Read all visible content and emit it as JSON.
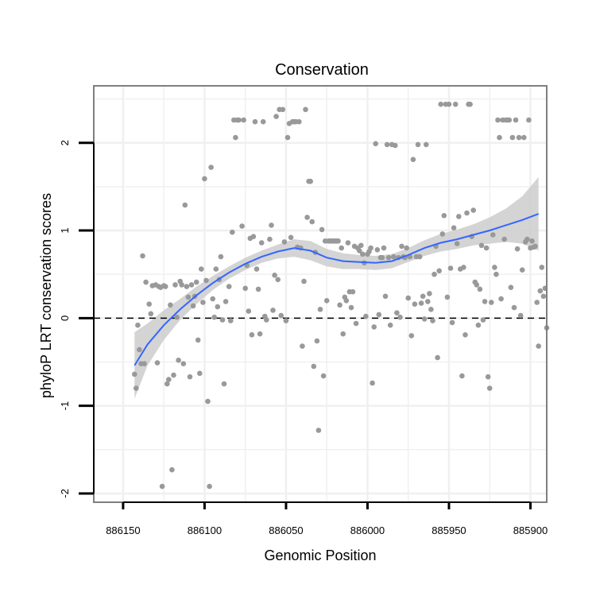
{
  "chart_data": {
    "type": "scatter",
    "title": "Conservation",
    "xlabel": "Genomic Position",
    "ylabel": "phyloP LRT conservation scores",
    "x_reversed": true,
    "xlim": [
      886168,
      885890
    ],
    "ylim": [
      -2.1,
      2.65
    ],
    "x_ticks": [
      886150,
      886100,
      886050,
      886000,
      885950,
      885900
    ],
    "x_tick_labels": [
      "886150",
      "886100",
      "886050",
      "886000",
      "885950",
      "885900"
    ],
    "y_ticks": [
      -2,
      -1,
      0,
      1,
      2
    ],
    "y_tick_labels": [
      "-2",
      "-1",
      "0",
      "1",
      "2"
    ],
    "reference_line_y": 0,
    "grid": true,
    "colors": {
      "points": "#999999",
      "smooth_line": "#3366ff",
      "confidence_band": "#cccccc",
      "panel_border": "#7f7f7f",
      "grid": "#f0f0f0"
    },
    "smooth": {
      "x": [
        886143,
        886135,
        886125,
        886115,
        886105,
        886095,
        886085,
        886075,
        886065,
        886055,
        886045,
        886035,
        886025,
        886015,
        886005,
        885995,
        885985,
        885975,
        885965,
        885955,
        885945,
        885935,
        885925,
        885915,
        885905,
        885895
      ],
      "y": [
        -0.54,
        -0.3,
        -0.08,
        0.1,
        0.26,
        0.4,
        0.52,
        0.62,
        0.7,
        0.76,
        0.8,
        0.77,
        0.69,
        0.65,
        0.64,
        0.63,
        0.65,
        0.72,
        0.8,
        0.86,
        0.9,
        0.95,
        1.0,
        1.06,
        1.12,
        1.19
      ],
      "lower": [
        -0.92,
        -0.54,
        -0.25,
        -0.02,
        0.16,
        0.32,
        0.45,
        0.55,
        0.63,
        0.68,
        0.7,
        0.66,
        0.59,
        0.56,
        0.56,
        0.55,
        0.57,
        0.64,
        0.71,
        0.76,
        0.79,
        0.83,
        0.85,
        0.87,
        0.85,
        0.77
      ],
      "upper": [
        -0.16,
        -0.06,
        0.09,
        0.22,
        0.36,
        0.48,
        0.59,
        0.69,
        0.77,
        0.84,
        0.9,
        0.88,
        0.79,
        0.74,
        0.72,
        0.71,
        0.73,
        0.8,
        0.89,
        0.96,
        1.01,
        1.07,
        1.15,
        1.25,
        1.39,
        1.61
      ]
    },
    "points": [
      [
        886143,
        -0.64
      ],
      [
        886142,
        -0.8
      ],
      [
        886141,
        -0.08
      ],
      [
        886140,
        -0.36
      ],
      [
        886139,
        -0.52
      ],
      [
        886138,
        0.71
      ],
      [
        886137,
        -0.52
      ],
      [
        886136,
        0.41
      ],
      [
        886134,
        0.16
      ],
      [
        886133,
        0.05
      ],
      [
        886132,
        0.37
      ],
      [
        886130,
        0.38
      ],
      [
        886129,
        -0.51
      ],
      [
        886128,
        0.36
      ],
      [
        886127,
        0.35
      ],
      [
        886126,
        -1.92
      ],
      [
        886125,
        0.37
      ],
      [
        886124,
        0.36
      ],
      [
        886123,
        -0.75
      ],
      [
        886122,
        -0.7
      ],
      [
        886121,
        0.15
      ],
      [
        886120,
        -1.73
      ],
      [
        886119,
        -0.65
      ],
      [
        886118,
        0.38
      ],
      [
        886117,
        0.01
      ],
      [
        886116,
        -0.48
      ],
      [
        886115,
        0.42
      ],
      [
        886114,
        0.38
      ],
      [
        886113,
        -0.52
      ],
      [
        886112,
        1.29
      ],
      [
        886111,
        0.36
      ],
      [
        886110,
        0.24
      ],
      [
        886109,
        -0.67
      ],
      [
        886108,
        0.38
      ],
      [
        886107,
        0.14
      ],
      [
        886106,
        0.25
      ],
      [
        886105,
        0.41
      ],
      [
        886104,
        -0.25
      ],
      [
        886103,
        -0.63
      ],
      [
        886102,
        0.56
      ],
      [
        886101,
        0.18
      ],
      [
        886100,
        1.59
      ],
      [
        886099,
        0.43
      ],
      [
        886098,
        -0.95
      ],
      [
        886097,
        -1.92
      ],
      [
        886096,
        1.72
      ],
      [
        886095,
        0.22
      ],
      [
        886094,
        0.01
      ],
      [
        886093,
        0.56
      ],
      [
        886092,
        0.13
      ],
      [
        886091,
        0.44
      ],
      [
        886090,
        0.7
      ],
      [
        886089,
        -0.02
      ],
      [
        886088,
        -0.75
      ],
      [
        886087,
        0.19
      ],
      [
        886085,
        0.36
      ],
      [
        886084,
        -0.03
      ],
      [
        886083,
        0.98
      ],
      [
        886082,
        2.26
      ],
      [
        886081,
        2.06
      ],
      [
        886080,
        2.26
      ],
      [
        886079,
        2.26
      ],
      [
        886077,
        1.05
      ],
      [
        886076,
        2.26
      ],
      [
        886075,
        0.34
      ],
      [
        886074,
        0.6
      ],
      [
        886073,
        0.08
      ],
      [
        886072,
        0.91
      ],
      [
        886071,
        -0.19
      ],
      [
        886070,
        0.93
      ],
      [
        886069,
        2.24
      ],
      [
        886068,
        0.56
      ],
      [
        886067,
        0.33
      ],
      [
        886066,
        -0.18
      ],
      [
        886065,
        0.86
      ],
      [
        886064,
        2.24
      ],
      [
        886063,
        0.02
      ],
      [
        886062,
        -0.02
      ],
      [
        886060,
        0.9
      ],
      [
        886059,
        1.06
      ],
      [
        886058,
        0.09
      ],
      [
        886057,
        0.49
      ],
      [
        886056,
        2.3
      ],
      [
        886055,
        0.44
      ],
      [
        886054,
        2.38
      ],
      [
        886053,
        0.03
      ],
      [
        886052,
        2.38
      ],
      [
        886051,
        0.87
      ],
      [
        886050,
        -0.03
      ],
      [
        886049,
        2.06
      ],
      [
        886048,
        2.22
      ],
      [
        886047,
        0.92
      ],
      [
        886046,
        2.24
      ],
      [
        886045,
        2.24
      ],
      [
        886044,
        2.24
      ],
      [
        886043,
        0.81
      ],
      [
        886042,
        2.24
      ],
      [
        886041,
        0.8
      ],
      [
        886040,
        -0.32
      ],
      [
        886039,
        0.42
      ],
      [
        886038,
        2.38
      ],
      [
        886037,
        1.15
      ],
      [
        886036,
        1.56
      ],
      [
        886035,
        1.56
      ],
      [
        886034,
        1.1
      ],
      [
        886033,
        -0.55
      ],
      [
        886032,
        0.75
      ],
      [
        886031,
        -0.26
      ],
      [
        886030,
        -1.28
      ],
      [
        886029,
        0.1
      ],
      [
        886028,
        1.01
      ],
      [
        886027,
        -0.66
      ],
      [
        886026,
        0.88
      ],
      [
        886025,
        0.2
      ],
      [
        886024,
        0.88
      ],
      [
        886023,
        0.88
      ],
      [
        886022,
        0.88
      ],
      [
        886021,
        0.88
      ],
      [
        886020,
        0.88
      ],
      [
        886019,
        0.88
      ],
      [
        886018,
        0.88
      ],
      [
        886017,
        0.15
      ],
      [
        886016,
        0.8
      ],
      [
        886015,
        -0.18
      ],
      [
        886014,
        0.24
      ],
      [
        886013,
        0.2
      ],
      [
        886012,
        0.86
      ],
      [
        886011,
        0.3
      ],
      [
        886010,
        0.12
      ],
      [
        886009,
        0.3
      ],
      [
        886008,
        0.82
      ],
      [
        886007,
        -0.06
      ],
      [
        886006,
        0.8
      ],
      [
        886005,
        0.77
      ],
      [
        886004,
        0.83
      ],
      [
        886003,
        0.73
      ],
      [
        886002,
        0.63
      ],
      [
        886001,
        0.02
      ],
      [
        886000,
        0.73
      ],
      [
        885999,
        0.76
      ],
      [
        885998,
        0.8
      ],
      [
        885997,
        -0.74
      ],
      [
        885996,
        -0.1
      ],
      [
        885995,
        1.99
      ],
      [
        885994,
        0.78
      ],
      [
        885993,
        0.04
      ],
      [
        885992,
        0.69
      ],
      [
        885991,
        0.69
      ],
      [
        885990,
        0.8
      ],
      [
        885989,
        0.25
      ],
      [
        885988,
        1.98
      ],
      [
        885987,
        0.69
      ],
      [
        885986,
        -0.08
      ],
      [
        885985,
        1.98
      ],
      [
        885984,
        0.7
      ],
      [
        885983,
        1.97
      ],
      [
        885982,
        0.06
      ],
      [
        885981,
        0.69
      ],
      [
        885980,
        0.01
      ],
      [
        885979,
        0.82
      ],
      [
        885978,
        0.7
      ],
      [
        885977,
        0.69
      ],
      [
        885976,
        0.8
      ],
      [
        885975,
        0.23
      ],
      [
        885974,
        0.7
      ],
      [
        885973,
        -0.2
      ],
      [
        885972,
        1.81
      ],
      [
        885971,
        0.16
      ],
      [
        885970,
        0.7
      ],
      [
        885969,
        1.98
      ],
      [
        885968,
        0.7
      ],
      [
        885967,
        0.17
      ],
      [
        885966,
        0.25
      ],
      [
        885965,
        -0.01
      ],
      [
        885964,
        1.98
      ],
      [
        885963,
        0.19
      ],
      [
        885962,
        0.28
      ],
      [
        885961,
        0.1
      ],
      [
        885960,
        -0.03
      ],
      [
        885959,
        0.5
      ],
      [
        885958,
        0.82
      ],
      [
        885957,
        -0.45
      ],
      [
        885956,
        0.54
      ],
      [
        885955,
        2.44
      ],
      [
        885954,
        0.96
      ],
      [
        885953,
        1.17
      ],
      [
        885952,
        2.44
      ],
      [
        885951,
        0.24
      ],
      [
        885950,
        2.44
      ],
      [
        885949,
        0.57
      ],
      [
        885948,
        -0.05
      ],
      [
        885947,
        1.03
      ],
      [
        885946,
        2.44
      ],
      [
        885945,
        0.85
      ],
      [
        885944,
        1.16
      ],
      [
        885943,
        0.56
      ],
      [
        885942,
        -0.66
      ],
      [
        885941,
        0.58
      ],
      [
        885940,
        -0.19
      ],
      [
        885939,
        1.2
      ],
      [
        885938,
        2.44
      ],
      [
        885937,
        2.44
      ],
      [
        885936,
        0.93
      ],
      [
        885935,
        1.23
      ],
      [
        885934,
        0.41
      ],
      [
        885933,
        0.38
      ],
      [
        885932,
        -0.08
      ],
      [
        885931,
        0.33
      ],
      [
        885930,
        0.83
      ],
      [
        885929,
        -0.02
      ],
      [
        885928,
        0.19
      ],
      [
        885927,
        0.8
      ],
      [
        885926,
        -0.67
      ],
      [
        885925,
        -0.8
      ],
      [
        885924,
        0.18
      ],
      [
        885923,
        0.95
      ],
      [
        885922,
        0.58
      ],
      [
        885921,
        0.5
      ],
      [
        885920,
        2.26
      ],
      [
        885919,
        2.06
      ],
      [
        885918,
        0.22
      ],
      [
        885917,
        2.26
      ],
      [
        885916,
        0.9
      ],
      [
        885915,
        2.26
      ],
      [
        885914,
        2.26
      ],
      [
        885913,
        2.26
      ],
      [
        885912,
        0.35
      ],
      [
        885911,
        2.06
      ],
      [
        885910,
        0.12
      ],
      [
        885909,
        2.26
      ],
      [
        885908,
        0.79
      ],
      [
        885907,
        2.06
      ],
      [
        885906,
        0.03
      ],
      [
        885905,
        0.55
      ],
      [
        885904,
        2.06
      ],
      [
        885903,
        0.87
      ],
      [
        885902,
        0.9
      ],
      [
        885901,
        2.26
      ],
      [
        885900,
        0.8
      ],
      [
        885899,
        0.88
      ],
      [
        885898,
        0.81
      ],
      [
        885897,
        0.82
      ],
      [
        885896,
        0.18
      ],
      [
        885895,
        -0.32
      ],
      [
        885894,
        0.31
      ],
      [
        885893,
        0.58
      ],
      [
        885892,
        0.25
      ],
      [
        885891,
        0.34
      ],
      [
        885890,
        -0.11
      ]
    ]
  }
}
